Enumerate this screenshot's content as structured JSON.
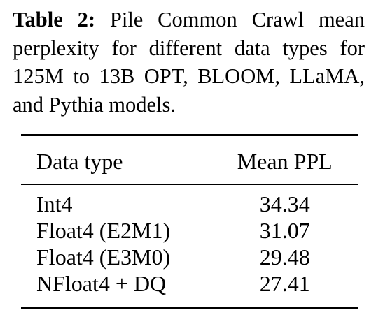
{
  "caption": {
    "label": "Table 2:",
    "text": "Pile Common Crawl mean perplexity for different data types for 125M to 13B OPT, BLOOM, LLaMA, and Pythia models."
  },
  "table": {
    "headers": [
      "Data type",
      "Mean PPL"
    ],
    "rows": [
      {
        "data_type": "Int4",
        "mean_ppl": "34.34",
        "bold": false
      },
      {
        "data_type": "Float4 (E2M1)",
        "mean_ppl": "31.07",
        "bold": false
      },
      {
        "data_type": "Float4 (E3M0)",
        "mean_ppl": "29.48",
        "bold": false
      },
      {
        "data_type": "NFloat4 + DQ",
        "mean_ppl": "27.41",
        "bold": true
      }
    ]
  }
}
